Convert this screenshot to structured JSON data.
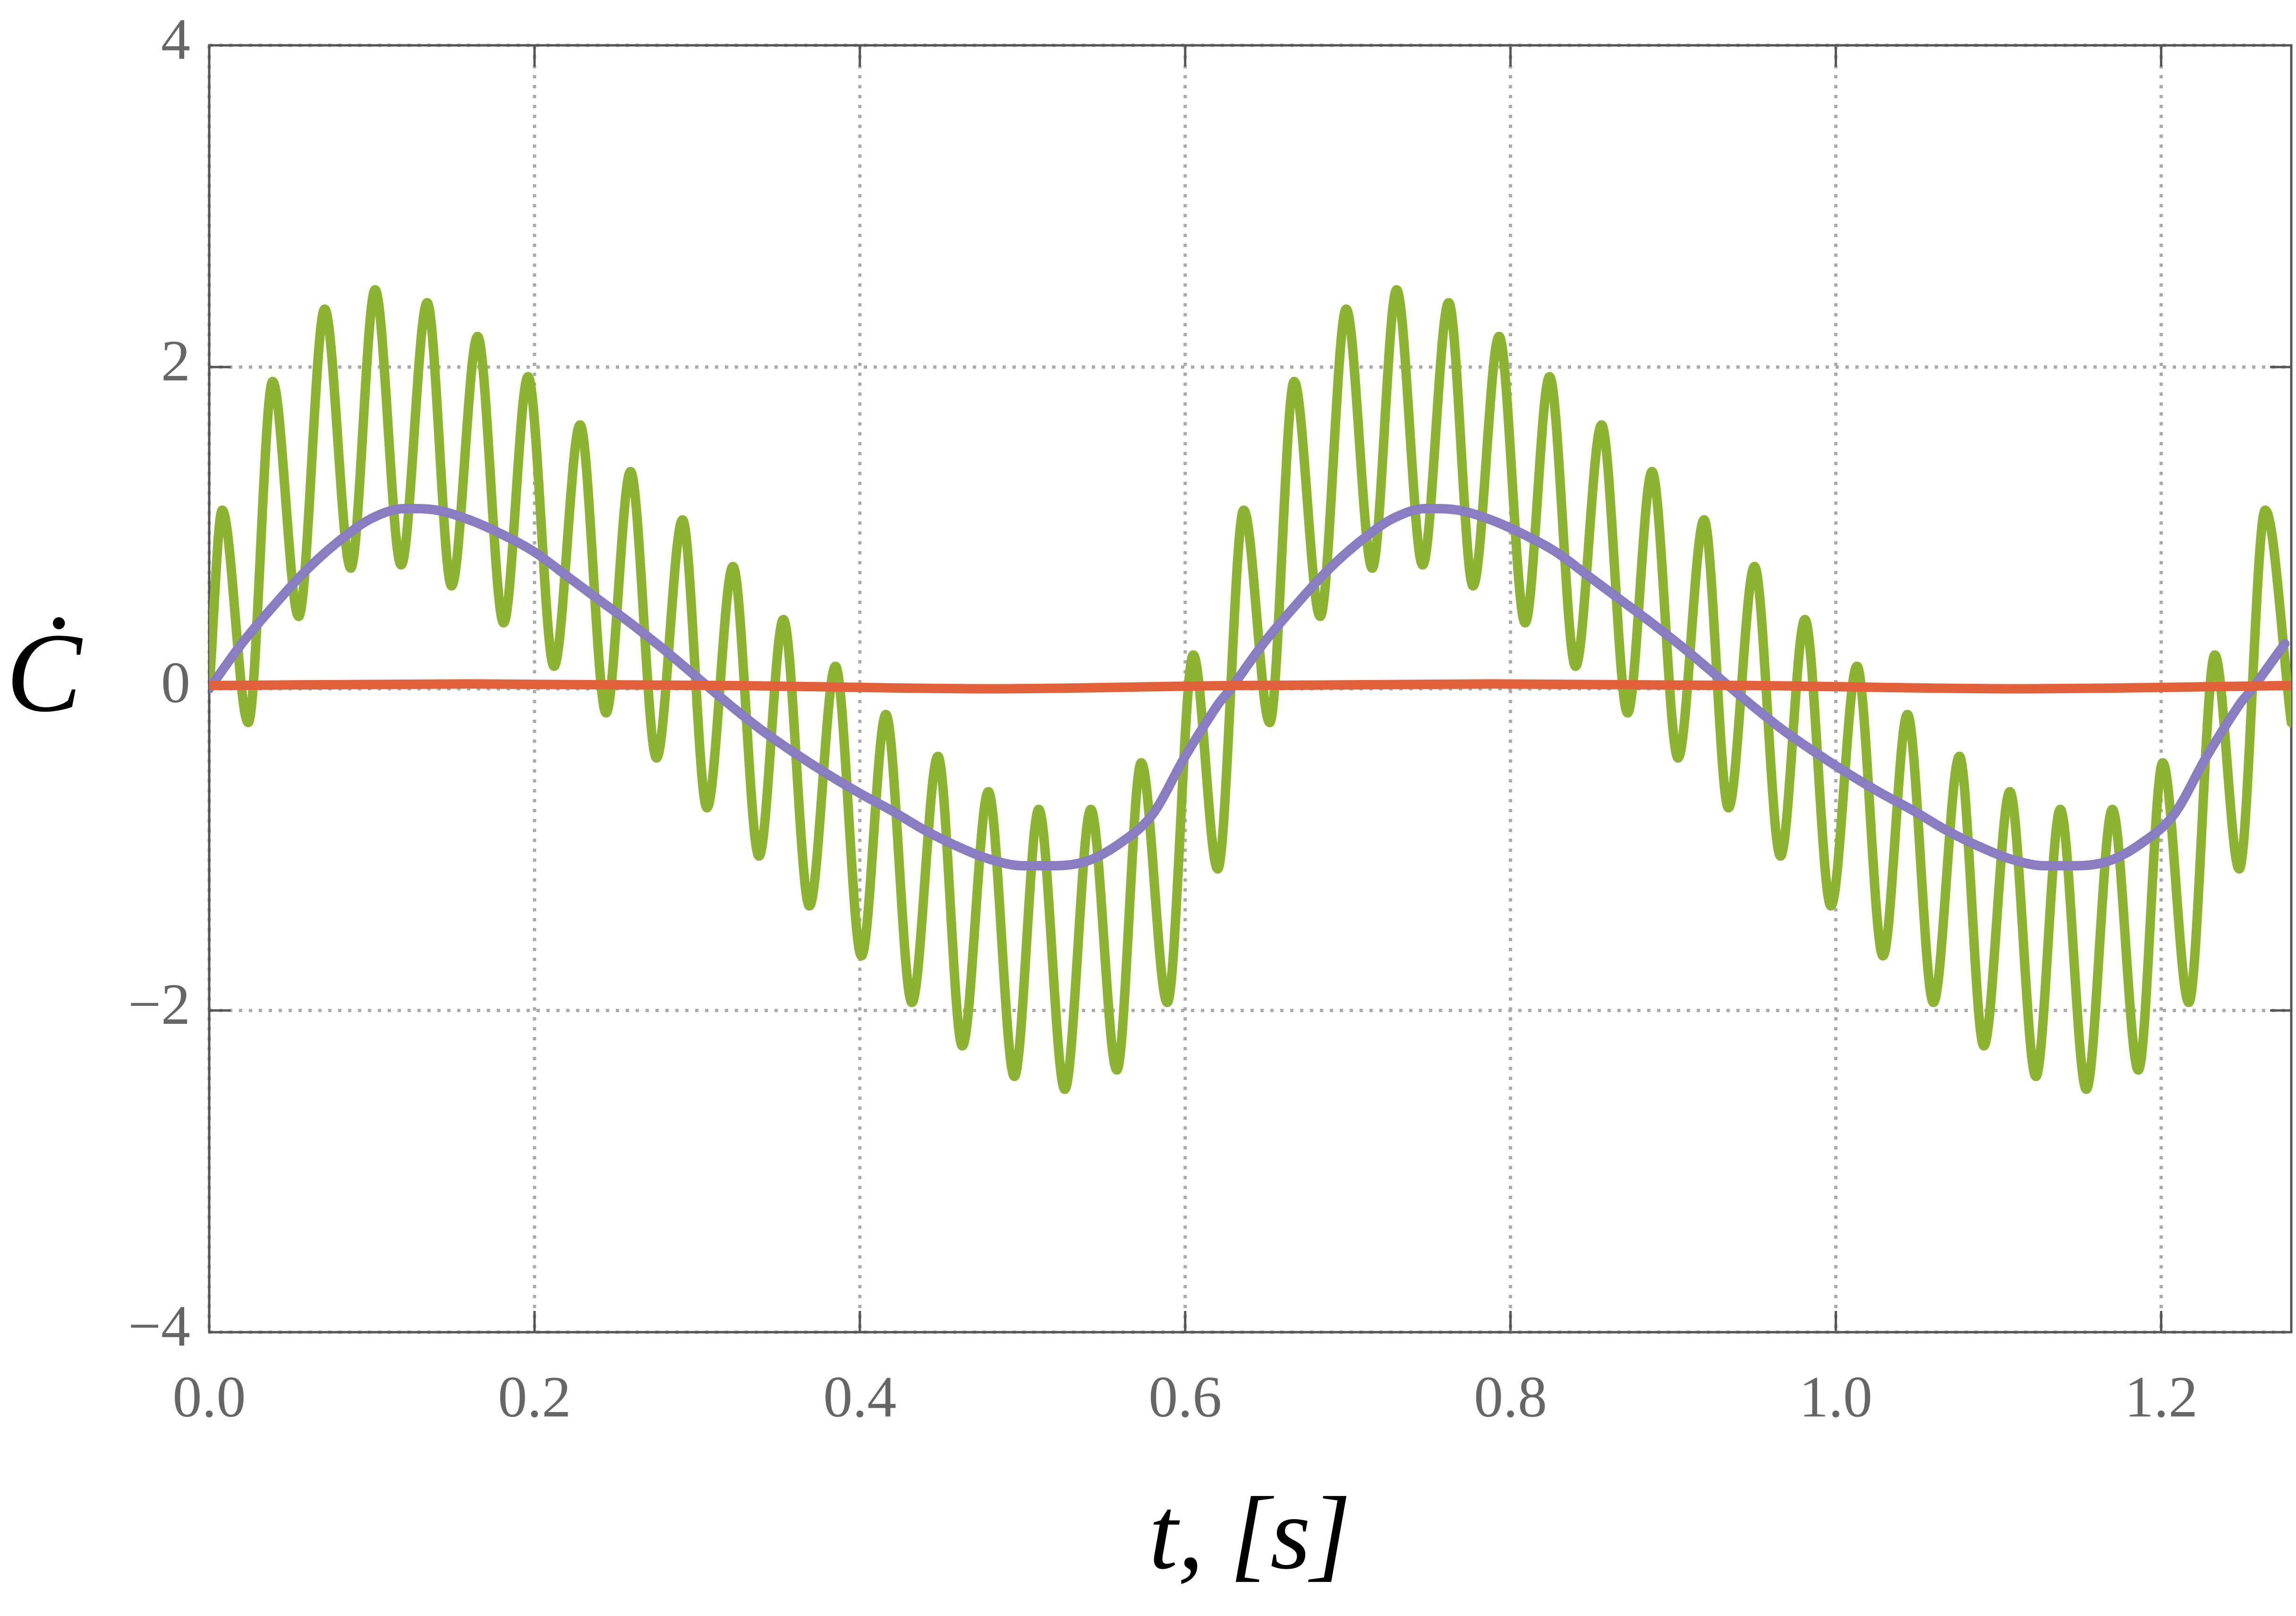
{
  "chart_data": {
    "type": "line",
    "x_label": "t, [s]",
    "y_label": "Ċ",
    "xlim": [
      0,
      1.28
    ],
    "ylim": [
      -4,
      4
    ],
    "xticks": [
      {
        "value": 0,
        "label": "0.0"
      },
      0.2,
      0.4,
      0.6,
      0.8,
      {
        "value": 1,
        "label": "1.0"
      },
      1.2
    ],
    "yticks": [
      {
        "value": -4,
        "label": "−4"
      },
      {
        "value": -2,
        "label": "−2"
      },
      0,
      2,
      4
    ],
    "grid": true,
    "series": [
      {
        "color": "#8db332",
        "x": [
          0,
          0.008,
          0.024,
          0.039,
          0.055,
          0.071,
          0.087,
          0.102,
          0.118,
          0.134,
          0.149,
          0.165,
          0.181,
          0.196,
          0.212,
          0.228,
          0.244,
          0.259,
          0.275,
          0.291,
          0.306,
          0.322,
          0.338,
          0.353,
          0.369,
          0.385,
          0.401,
          0.416,
          0.432,
          0.448,
          0.463,
          0.479,
          0.495,
          0.51,
          0.526,
          0.542,
          0.558,
          0.573,
          0.589,
          0.605,
          0.62,
          0.636,
          0.652,
          0.667,
          0.683,
          0.699,
          0.715,
          0.73,
          0.746,
          0.762,
          0.777,
          0.793,
          0.809,
          0.824,
          0.84,
          0.856,
          0.872,
          0.887,
          0.903,
          0.919,
          0.934,
          0.95,
          0.966,
          0.981,
          0.997,
          1.013,
          1.029,
          1.044,
          1.06,
          1.076,
          1.091,
          1.107,
          1.123,
          1.138,
          1.154,
          1.17,
          1.186,
          1.201,
          1.217,
          1.233,
          1.248,
          1.264,
          1.28
        ],
        "values": [
          0,
          1.11,
          -0.21,
          1.91,
          0.45,
          2.36,
          0.75,
          2.48,
          0.77,
          2.4,
          0.64,
          2.19,
          0.41,
          1.94,
          0.14,
          1.64,
          -0.15,
          1.35,
          -0.43,
          1.05,
          -0.74,
          0.76,
          -1.04,
          0.43,
          -1.35,
          0.14,
          -1.66,
          -0.16,
          -1.95,
          -0.42,
          -2.22,
          -0.64,
          -2.41,
          -0.75,
          -2.49,
          -0.75,
          -2.37,
          -0.46,
          -1.95,
          0.21,
          -1.12,
          1.11,
          -0.21,
          1.91,
          0.45,
          2.36,
          0.75,
          2.48,
          0.77,
          2.4,
          0.64,
          2.19,
          0.41,
          1.94,
          0.14,
          1.64,
          -0.15,
          1.35,
          -0.43,
          1.05,
          -0.74,
          0.76,
          -1.04,
          0.43,
          -1.35,
          0.14,
          -1.66,
          -0.16,
          -1.95,
          -0.42,
          -2.22,
          -0.64,
          -2.41,
          -0.75,
          -2.49,
          -0.75,
          -2.37,
          -0.46,
          -1.95,
          0.21,
          -1.12,
          1.11,
          -0.21
        ]
      },
      {
        "color": "#8a7cc0",
        "x": [
          0,
          0.02,
          0.04,
          0.06,
          0.08,
          0.1,
          0.12,
          0.14,
          0.16,
          0.18,
          0.2,
          0.22,
          0.24,
          0.26,
          0.28,
          0.3,
          0.32,
          0.34,
          0.36,
          0.38,
          0.4,
          0.42,
          0.44,
          0.46,
          0.48,
          0.5,
          0.52,
          0.54,
          0.56,
          0.58,
          0.6,
          0.62,
          0.628,
          0.648,
          0.668,
          0.688,
          0.708,
          0.728,
          0.748,
          0.768,
          0.788,
          0.808,
          0.828,
          0.848,
          0.868,
          0.888,
          0.908,
          0.928,
          0.948,
          0.968,
          0.988,
          1.008,
          1.028,
          1.048,
          1.068,
          1.088,
          1.108,
          1.128,
          1.148,
          1.168,
          1.188,
          1.208,
          1.228,
          1.248,
          1.256,
          1.276
        ],
        "values": [
          0,
          0.28,
          0.52,
          0.74,
          0.92,
          1.06,
          1.12,
          1.11,
          1.05,
          0.96,
          0.85,
          0.7,
          0.55,
          0.4,
          0.24,
          0.07,
          -0.1,
          -0.26,
          -0.4,
          -0.53,
          -0.65,
          -0.76,
          -0.88,
          -0.98,
          -1.06,
          -1.1,
          -1.1,
          -1.07,
          -0.96,
          -0.78,
          -0.42,
          -0.1,
          0,
          0.28,
          0.52,
          0.74,
          0.92,
          1.06,
          1.12,
          1.11,
          1.05,
          0.96,
          0.85,
          0.7,
          0.55,
          0.4,
          0.24,
          0.07,
          -0.1,
          -0.26,
          -0.4,
          -0.53,
          -0.65,
          -0.76,
          -0.88,
          -0.98,
          -1.06,
          -1.1,
          -1.1,
          -1.07,
          -0.96,
          -0.78,
          -0.42,
          -0.1,
          0,
          0.28
        ]
      },
      {
        "color": "#e2613a",
        "x": [
          0,
          0.16,
          0.32,
          0.48,
          0.63,
          0.79,
          0.95,
          1.11,
          1.28
        ],
        "values": [
          0.02,
          0.03,
          0.02,
          0,
          0.02,
          0.03,
          0.02,
          0,
          0.02
        ]
      }
    ]
  }
}
